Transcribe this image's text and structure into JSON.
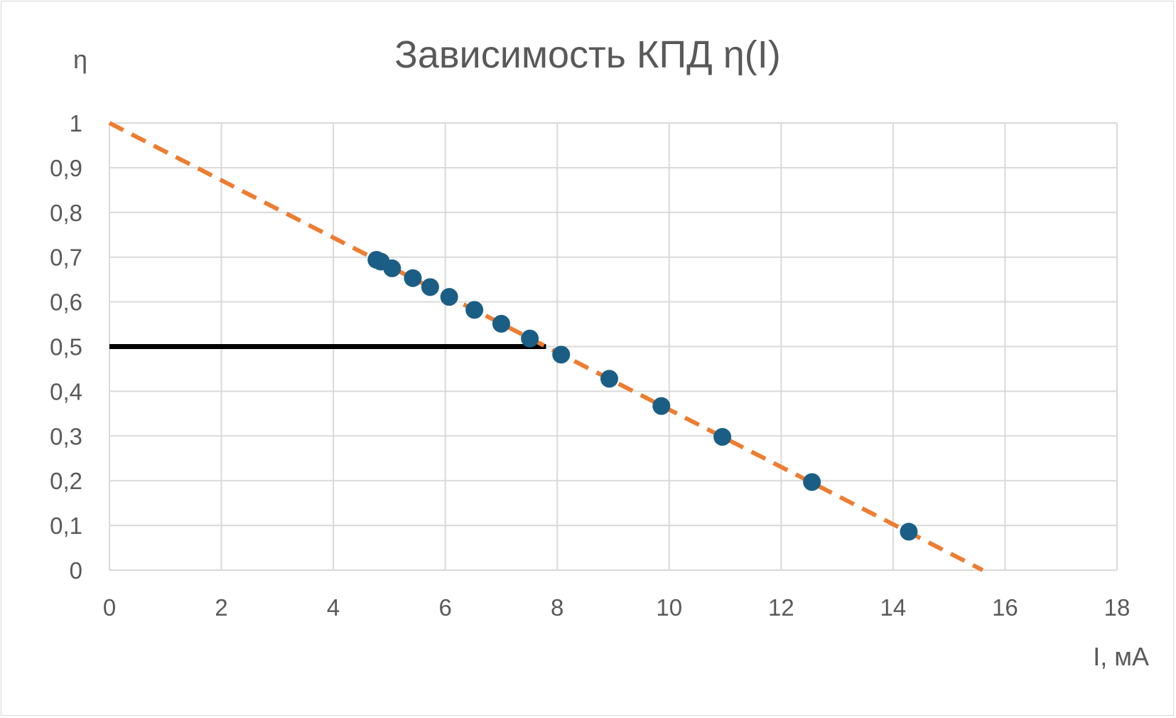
{
  "chart_data": {
    "type": "scatter",
    "title": "Зависимость КПД η(I)",
    "xlabel": "I, мА",
    "ylabel": "η",
    "xlim": [
      0,
      18
    ],
    "ylim": [
      0,
      1
    ],
    "x_ticks": [
      "0",
      "2",
      "4",
      "6",
      "8",
      "10",
      "12",
      "14",
      "16",
      "18"
    ],
    "y_ticks": [
      "0",
      "0,1",
      "0,2",
      "0,3",
      "0,4",
      "0,5",
      "0,6",
      "0,7",
      "0,8",
      "0,9",
      "1"
    ],
    "x_tick_values": [
      0,
      2,
      4,
      6,
      8,
      10,
      12,
      14,
      16,
      18
    ],
    "y_tick_values": [
      0,
      0.1,
      0.2,
      0.3,
      0.4,
      0.5,
      0.6,
      0.7,
      0.8,
      0.9,
      1
    ],
    "grid": true,
    "points": [
      {
        "x": 4.77,
        "y": 0.694
      },
      {
        "x": 4.85,
        "y": 0.69
      },
      {
        "x": 5.05,
        "y": 0.675
      },
      {
        "x": 5.42,
        "y": 0.653
      },
      {
        "x": 5.73,
        "y": 0.633
      },
      {
        "x": 6.07,
        "y": 0.611
      },
      {
        "x": 6.52,
        "y": 0.582
      },
      {
        "x": 7.0,
        "y": 0.551
      },
      {
        "x": 7.51,
        "y": 0.518
      },
      {
        "x": 8.07,
        "y": 0.482
      },
      {
        "x": 8.93,
        "y": 0.428
      },
      {
        "x": 9.86,
        "y": 0.367
      },
      {
        "x": 10.95,
        "y": 0.298
      },
      {
        "x": 12.55,
        "y": 0.197
      },
      {
        "x": 14.28,
        "y": 0.086
      }
    ],
    "trendline": {
      "type": "linear",
      "x": [
        0,
        15.6
      ],
      "y": [
        1,
        0
      ]
    },
    "reference_line": {
      "x": [
        0,
        7.8
      ],
      "y": [
        0.5,
        0.5
      ]
    },
    "colors": {
      "points": "#1a5e86",
      "trendline": "#ed7d31",
      "reference_line": "#000000",
      "grid": "#d9d9d9",
      "text": "#595959"
    }
  }
}
